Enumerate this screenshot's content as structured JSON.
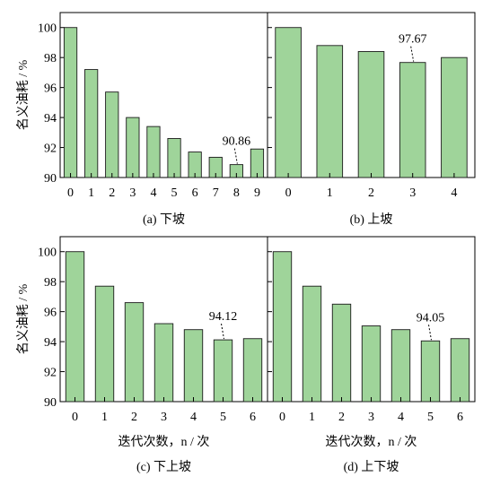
{
  "colors": {
    "bar_fill": "#9fd49a",
    "bar_stroke": "#1a1a1a",
    "axis": "#000000"
  },
  "chart_data": [
    {
      "type": "bar",
      "panel": "a",
      "caption": "(a)  下坡",
      "ylabel": "名义油耗 / %",
      "xlabel": "",
      "ylim": [
        90,
        101
      ],
      "yticks": [
        90,
        92,
        94,
        96,
        98,
        100
      ],
      "categories": [
        "0",
        "1",
        "2",
        "3",
        "4",
        "5",
        "6",
        "7",
        "8",
        "9"
      ],
      "values": [
        100,
        97.2,
        95.7,
        94.0,
        93.4,
        92.6,
        91.7,
        91.35,
        90.86,
        91.9
      ],
      "annotation": {
        "index": 8,
        "text": "90.86"
      }
    },
    {
      "type": "bar",
      "panel": "b",
      "caption": "(b)  上坡",
      "ylabel": "",
      "xlabel": "",
      "ylim": [
        90,
        101
      ],
      "yticks": [
        90,
        92,
        94,
        96,
        98,
        100
      ],
      "categories": [
        "0",
        "1",
        "2",
        "3",
        "4"
      ],
      "values": [
        100,
        98.8,
        98.4,
        97.67,
        98.0
      ],
      "annotation": {
        "index": 3,
        "text": "97.67"
      }
    },
    {
      "type": "bar",
      "panel": "c",
      "caption": "(c)  下上坡",
      "ylabel": "名义油耗 / %",
      "xlabel": "迭代次数，n / 次",
      "ylim": [
        90,
        101
      ],
      "yticks": [
        90,
        92,
        94,
        96,
        98,
        100
      ],
      "categories": [
        "0",
        "1",
        "2",
        "3",
        "4",
        "5",
        "6"
      ],
      "values": [
        100,
        97.7,
        96.6,
        95.2,
        94.8,
        94.12,
        94.2
      ],
      "annotation": {
        "index": 5,
        "text": "94.12"
      }
    },
    {
      "type": "bar",
      "panel": "d",
      "caption": "(d)  上下坡",
      "ylabel": "",
      "xlabel": "迭代次数，n / 次",
      "ylim": [
        90,
        101
      ],
      "yticks": [
        90,
        92,
        94,
        96,
        98,
        100
      ],
      "categories": [
        "0",
        "1",
        "2",
        "3",
        "4",
        "5",
        "6"
      ],
      "values": [
        100,
        97.7,
        96.5,
        95.05,
        94.8,
        94.05,
        94.2
      ],
      "annotation": {
        "index": 5,
        "text": "94.05"
      }
    }
  ]
}
